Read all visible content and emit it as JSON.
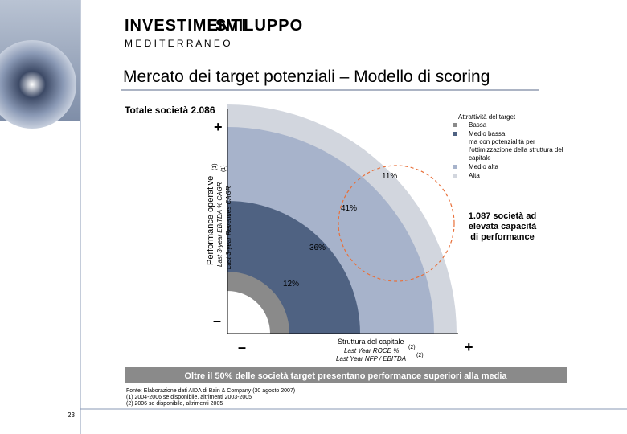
{
  "logo": {
    "line1a": "INVESTIMENTI",
    "line1b": "SVILUPPO",
    "line2": "M E D I T E R R A N E O"
  },
  "title": "Mercato dei target potenziali – Modello di scoring",
  "total": "Totale società 2.086",
  "y_axis": {
    "title": "Performance operative",
    "metric1": "Last 3-year EBITDA % CAGR",
    "metric2": "Last 3-year Revenues CAGR",
    "note": "(1)",
    "plus": "+",
    "minus": "–"
  },
  "x_axis": {
    "title": "Struttura del capitale",
    "metric1": "Last Year ROCE %",
    "metric2": "Last Year NFP / EBITDA",
    "note": "(2)",
    "plus": "+",
    "minus": "–"
  },
  "bands": [
    {
      "label": "12%"
    },
    {
      "label": "36%"
    },
    {
      "label": "41%"
    },
    {
      "label": "11%"
    }
  ],
  "legend": {
    "title": "Attrattività del target",
    "items": [
      "Bassa",
      "Medio bassa",
      "ma con potenzialità per",
      "l'ottimizzazione della struttura del",
      "capitale",
      "Medio alta",
      "Alta"
    ]
  },
  "callout": [
    "1.087 società ad",
    "elevata capacità",
    "di performance"
  ],
  "banner": "Oltre il 50% delle società target presentano performance superiori alla media",
  "footnotes": [
    "Fonte:      Elaborazione dati AIDA di Bain & Company (30 agosto 2007)",
    "(1) 2004-2006 se disponibile, altrimenti 2003-2005",
    "(2) 2006 se disponibile, altrimenti 2005"
  ],
  "page": "23"
}
